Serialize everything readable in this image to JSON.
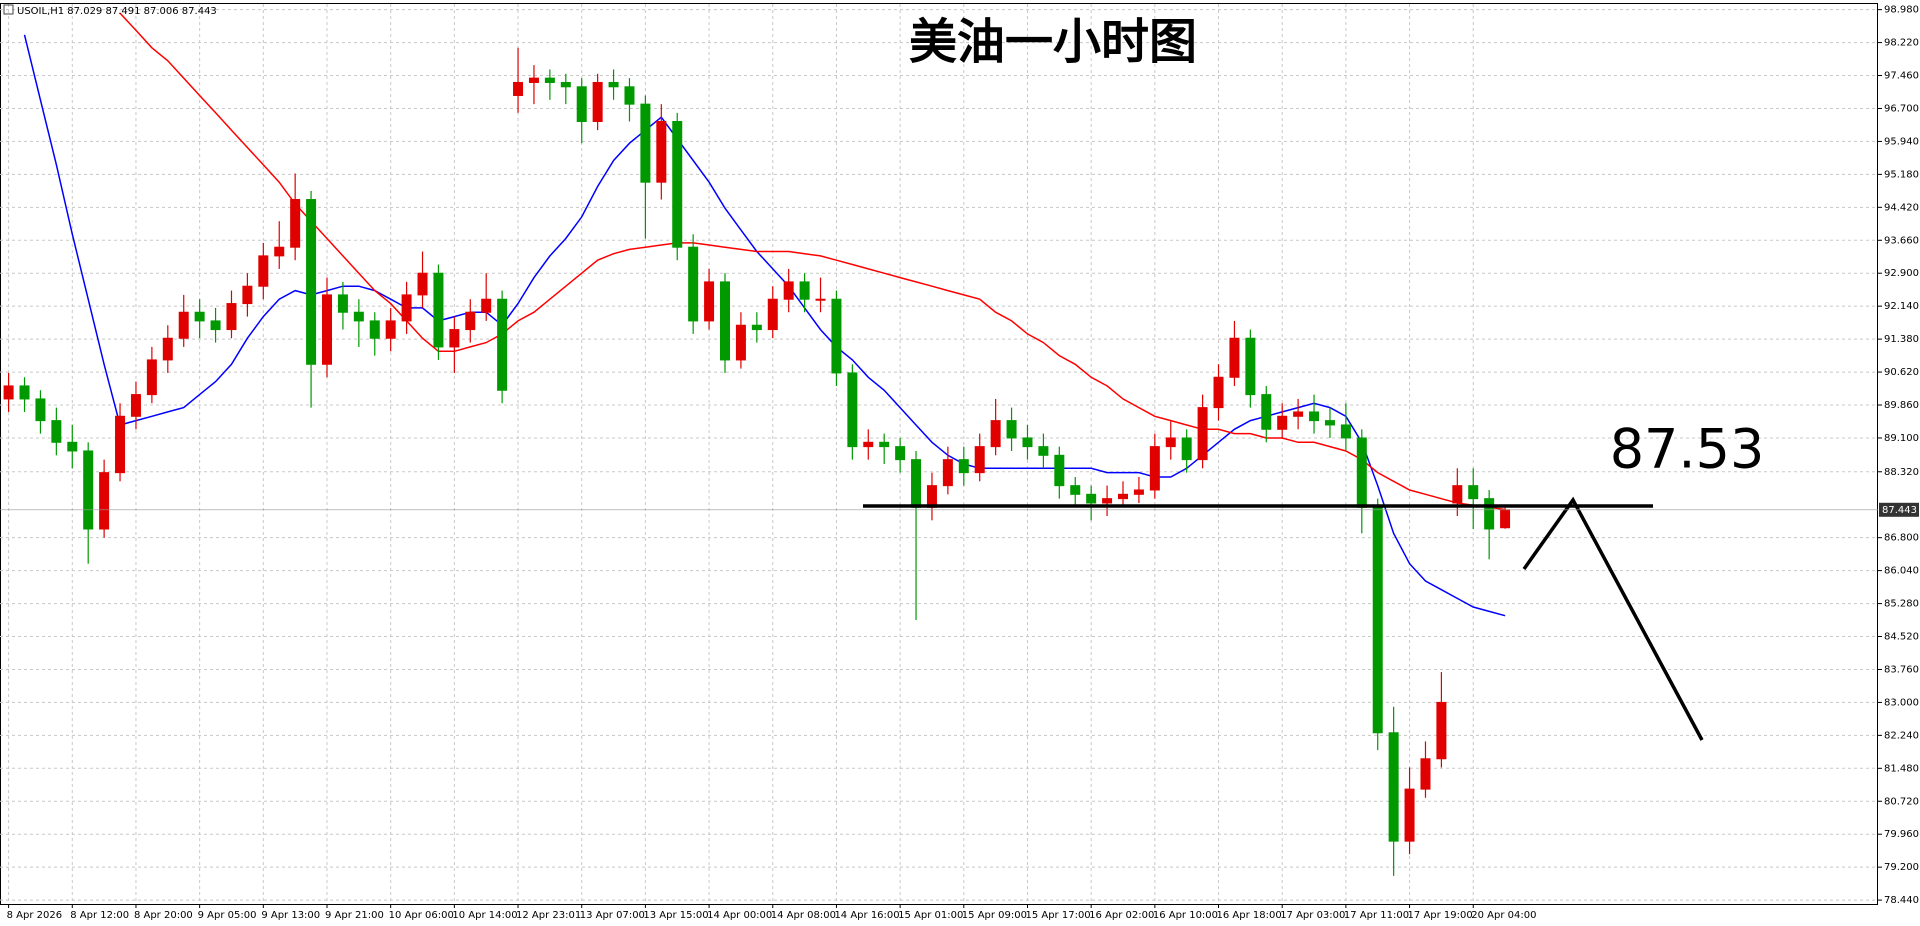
{
  "chart_data": {
    "type": "candlestick",
    "title": "美油一小时图",
    "header": "USOIL,H1 87.029 87.491 87.006 87.443",
    "categories": [
      "8 Apr 2026",
      null,
      null,
      null,
      "8 Apr 12:00",
      null,
      null,
      null,
      "8 Apr 20:00",
      null,
      null,
      null,
      "9 Apr 05:00",
      null,
      null,
      null,
      "9 Apr 13:00",
      null,
      null,
      null,
      "9 Apr 21:00",
      null,
      null,
      null,
      "10 Apr 06:00",
      null,
      null,
      null,
      "10 Apr 14:00",
      null,
      null,
      null,
      "12 Apr 23:01",
      null,
      null,
      null,
      "13 Apr 07:00",
      null,
      null,
      null,
      "13 Apr 15:00",
      null,
      null,
      null,
      "14 Apr 00:00",
      null,
      null,
      null,
      "14 Apr 08:00",
      null,
      null,
      null,
      "14 Apr 16:00",
      null,
      null,
      null,
      "15 Apr 01:00",
      null,
      null,
      null,
      "15 Apr 09:00",
      null,
      null,
      null,
      "15 Apr 17:00",
      null,
      null,
      null,
      "16 Apr 02:00",
      null,
      null,
      null,
      "16 Apr 10:00",
      null,
      null,
      null,
      "16 Apr 18:00",
      null,
      null,
      null,
      "17 Apr 03:00",
      null,
      null,
      null,
      "17 Apr 11:00",
      null,
      null,
      null,
      "17 Apr 19:00",
      null,
      null,
      null,
      "20 Apr 04:00",
      null,
      null
    ],
    "ohlc": [
      [
        90.0,
        90.6,
        89.7,
        90.3
      ],
      [
        90.3,
        90.5,
        89.7,
        90.0
      ],
      [
        90.0,
        90.2,
        89.2,
        89.5
      ],
      [
        89.5,
        89.8,
        88.7,
        89.0
      ],
      [
        89.0,
        89.4,
        88.4,
        88.8
      ],
      [
        88.8,
        89.0,
        86.2,
        87.0
      ],
      [
        87.0,
        88.6,
        86.8,
        88.3
      ],
      [
        88.3,
        89.9,
        88.1,
        89.6
      ],
      [
        89.6,
        90.4,
        89.3,
        90.1
      ],
      [
        90.1,
        91.2,
        89.9,
        90.9
      ],
      [
        90.9,
        91.7,
        90.6,
        91.4
      ],
      [
        91.4,
        92.4,
        91.2,
        92.0
      ],
      [
        92.0,
        92.3,
        91.4,
        91.8
      ],
      [
        91.8,
        92.1,
        91.3,
        91.6
      ],
      [
        91.6,
        92.5,
        91.4,
        92.2
      ],
      [
        92.2,
        92.9,
        91.9,
        92.6
      ],
      [
        92.6,
        93.6,
        92.3,
        93.3
      ],
      [
        93.3,
        94.1,
        93.0,
        93.5
      ],
      [
        93.5,
        95.2,
        93.2,
        94.6
      ],
      [
        94.6,
        94.8,
        89.8,
        90.8
      ],
      [
        90.8,
        92.8,
        90.5,
        92.4
      ],
      [
        92.4,
        92.7,
        91.6,
        92.0
      ],
      [
        92.0,
        92.3,
        91.2,
        91.8
      ],
      [
        91.8,
        92.0,
        91.0,
        91.4
      ],
      [
        91.4,
        92.1,
        91.1,
        91.8
      ],
      [
        91.8,
        92.7,
        91.5,
        92.4
      ],
      [
        92.4,
        93.4,
        92.1,
        92.9
      ],
      [
        92.9,
        93.1,
        90.9,
        91.2
      ],
      [
        91.2,
        91.9,
        90.6,
        91.6
      ],
      [
        91.6,
        92.3,
        91.3,
        92.0
      ],
      [
        92.0,
        92.9,
        91.8,
        92.3
      ],
      [
        92.3,
        92.5,
        89.9,
        90.2
      ],
      [
        97.0,
        98.1,
        96.6,
        97.3
      ],
      [
        97.3,
        97.7,
        96.8,
        97.4
      ],
      [
        97.4,
        97.6,
        96.9,
        97.3
      ],
      [
        97.3,
        97.5,
        96.8,
        97.2
      ],
      [
        97.2,
        97.4,
        95.9,
        96.4
      ],
      [
        96.4,
        97.5,
        96.2,
        97.3
      ],
      [
        97.3,
        97.6,
        96.9,
        97.2
      ],
      [
        97.2,
        97.4,
        96.4,
        96.8
      ],
      [
        96.8,
        97.0,
        93.7,
        95.0
      ],
      [
        95.0,
        96.8,
        94.6,
        96.4
      ],
      [
        96.4,
        96.6,
        93.2,
        93.5
      ],
      [
        93.5,
        93.8,
        91.5,
        91.8
      ],
      [
        91.8,
        93.0,
        91.6,
        92.7
      ],
      [
        92.7,
        92.9,
        90.6,
        90.9
      ],
      [
        90.9,
        92.0,
        90.7,
        91.7
      ],
      [
        91.7,
        92.0,
        91.3,
        91.6
      ],
      [
        91.6,
        92.6,
        91.4,
        92.3
      ],
      [
        92.3,
        93.0,
        92.0,
        92.7
      ],
      [
        92.7,
        92.9,
        92.0,
        92.3
      ],
      [
        92.3,
        92.8,
        92.0,
        92.3
      ],
      [
        92.3,
        92.5,
        90.3,
        90.6
      ],
      [
        90.6,
        90.8,
        88.6,
        88.9
      ],
      [
        88.9,
        89.3,
        88.6,
        89.0
      ],
      [
        89.0,
        89.2,
        88.5,
        88.9
      ],
      [
        88.9,
        89.1,
        88.3,
        88.6
      ],
      [
        88.6,
        88.8,
        84.9,
        87.5
      ],
      [
        87.5,
        88.3,
        87.2,
        88.0
      ],
      [
        88.0,
        88.9,
        87.8,
        88.6
      ],
      [
        88.6,
        88.9,
        88.0,
        88.3
      ],
      [
        88.3,
        89.2,
        88.1,
        88.9
      ],
      [
        88.9,
        90.0,
        88.7,
        89.5
      ],
      [
        89.5,
        89.8,
        88.8,
        89.1
      ],
      [
        89.1,
        89.4,
        88.6,
        88.9
      ],
      [
        88.9,
        89.2,
        88.4,
        88.7
      ],
      [
        88.7,
        88.9,
        87.7,
        88.0
      ],
      [
        88.0,
        88.2,
        87.5,
        87.8
      ],
      [
        87.8,
        88.0,
        87.2,
        87.6
      ],
      [
        87.6,
        88.0,
        87.3,
        87.7
      ],
      [
        87.7,
        88.1,
        87.5,
        87.8
      ],
      [
        87.8,
        88.2,
        87.6,
        87.9
      ],
      [
        87.9,
        89.2,
        87.7,
        88.9
      ],
      [
        88.9,
        89.5,
        88.6,
        89.1
      ],
      [
        89.1,
        89.3,
        88.3,
        88.6
      ],
      [
        88.6,
        90.1,
        88.4,
        89.8
      ],
      [
        89.8,
        90.8,
        89.5,
        90.5
      ],
      [
        90.5,
        91.8,
        90.3,
        91.4
      ],
      [
        91.4,
        91.6,
        89.8,
        90.1
      ],
      [
        90.1,
        90.3,
        89.0,
        89.3
      ],
      [
        89.3,
        89.9,
        89.1,
        89.6
      ],
      [
        89.6,
        90.0,
        89.3,
        89.7
      ],
      [
        89.7,
        90.1,
        89.2,
        89.5
      ],
      [
        89.5,
        89.8,
        89.1,
        89.4
      ],
      [
        89.4,
        89.9,
        88.8,
        89.1
      ],
      [
        89.1,
        89.3,
        86.9,
        87.5
      ],
      [
        87.5,
        87.7,
        81.9,
        82.3
      ],
      [
        82.3,
        82.9,
        79.0,
        79.8
      ],
      [
        79.8,
        81.5,
        79.5,
        81.0
      ],
      [
        81.0,
        82.1,
        80.8,
        81.7
      ],
      [
        81.7,
        83.7,
        81.5,
        83.0
      ],
      [
        87.6,
        88.4,
        87.3,
        88.0
      ],
      [
        88.0,
        88.4,
        87.0,
        87.7
      ],
      [
        87.7,
        87.9,
        86.3,
        87.0
      ],
      [
        87.029,
        87.491,
        87.006,
        87.443
      ]
    ],
    "up_color": "#e00000",
    "down_color": "#009a00",
    "series": [
      {
        "color": "#0000ff",
        "values": [
          null,
          98.4,
          96.9,
          95.4,
          93.8,
          92.3,
          90.8,
          89.4,
          89.5,
          89.6,
          89.7,
          89.8,
          90.1,
          90.4,
          90.8,
          91.4,
          91.9,
          92.3,
          92.5,
          92.4,
          92.5,
          92.6,
          92.6,
          92.5,
          92.3,
          92.1,
          92.1,
          91.8,
          91.9,
          92.0,
          92.0,
          91.7,
          92.2,
          92.8,
          93.3,
          93.7,
          94.2,
          94.9,
          95.5,
          95.9,
          96.2,
          96.5,
          96.0,
          95.5,
          95.0,
          94.4,
          93.9,
          93.4,
          93.0,
          92.6,
          92.1,
          91.6,
          91.2,
          90.9,
          90.5,
          90.2,
          89.8,
          89.4,
          89.0,
          88.7,
          88.5,
          88.4,
          88.4,
          88.4,
          88.4,
          88.4,
          88.4,
          88.4,
          88.4,
          88.3,
          88.3,
          88.3,
          88.2,
          88.2,
          88.4,
          88.7,
          89.0,
          89.3,
          89.5,
          89.6,
          89.7,
          89.8,
          89.9,
          89.8,
          89.6,
          89.0,
          88.0,
          86.9,
          86.2,
          85.8,
          85.6,
          85.4,
          85.2,
          85.1,
          85.0
        ]
      },
      {
        "color": "#ff0000",
        "values": [
          null,
          null,
          null,
          null,
          null,
          null,
          null,
          98.9,
          98.5,
          98.1,
          97.8,
          97.4,
          97.0,
          96.6,
          96.2,
          95.8,
          95.4,
          95.0,
          94.5,
          94.1,
          93.7,
          93.3,
          92.9,
          92.5,
          92.2,
          91.8,
          91.4,
          91.1,
          91.1,
          91.2,
          91.3,
          91.5,
          91.8,
          92.0,
          92.3,
          92.6,
          92.9,
          93.2,
          93.35,
          93.45,
          93.5,
          93.55,
          93.6,
          93.6,
          93.55,
          93.5,
          93.45,
          93.4,
          93.4,
          93.4,
          93.35,
          93.3,
          93.2,
          93.1,
          93.0,
          92.9,
          92.8,
          92.7,
          92.6,
          92.5,
          92.4,
          92.3,
          92.0,
          91.8,
          91.5,
          91.3,
          91.0,
          90.8,
          90.5,
          90.3,
          90.0,
          89.8,
          89.6,
          89.5,
          89.4,
          89.3,
          89.3,
          89.2,
          89.2,
          89.1,
          89.1,
          89.0,
          89.0,
          88.9,
          88.8,
          88.6,
          88.3,
          88.1,
          87.9,
          87.8,
          87.7,
          87.6,
          87.55,
          87.5,
          87.45
        ]
      }
    ],
    "ylim": [
      78.35,
      99.11
    ],
    "yticks": [
      {
        "value": 98.98,
        "label": "98.980"
      },
      {
        "value": 98.22,
        "label": "98.220"
      },
      {
        "value": 97.46,
        "label": "97.460"
      },
      {
        "value": 96.7,
        "label": "96.700"
      },
      {
        "value": 95.94,
        "label": "95.940"
      },
      {
        "value": 95.18,
        "label": "95.180"
      },
      {
        "value": 94.42,
        "label": "94.420"
      },
      {
        "value": 93.66,
        "label": "93.660"
      },
      {
        "value": 92.9,
        "label": "92.900"
      },
      {
        "value": 92.14,
        "label": "92.140"
      },
      {
        "value": 91.38,
        "label": "91.380"
      },
      {
        "value": 90.62,
        "label": "90.620"
      },
      {
        "value": 89.86,
        "label": "89.860"
      },
      {
        "value": 89.1,
        "label": "89.100"
      },
      {
        "value": 88.32,
        "label": "88.320"
      },
      {
        "value": 86.8,
        "label": "86.800"
      },
      {
        "value": 86.04,
        "label": "86.040"
      },
      {
        "value": 85.28,
        "label": "85.280"
      },
      {
        "value": 84.52,
        "label": "84.520"
      },
      {
        "value": 83.76,
        "label": "83.760"
      },
      {
        "value": 83.0,
        "label": "83.000"
      },
      {
        "value": 82.24,
        "label": "82.240"
      },
      {
        "value": 81.48,
        "label": "81.480"
      },
      {
        "value": 80.72,
        "label": "80.720"
      },
      {
        "value": 79.96,
        "label": "79.960"
      },
      {
        "value": 79.2,
        "label": "79.200"
      },
      {
        "value": 78.44,
        "label": "78.440"
      }
    ],
    "grid": true,
    "current_price": 87.443,
    "level": 87.53
  }
}
